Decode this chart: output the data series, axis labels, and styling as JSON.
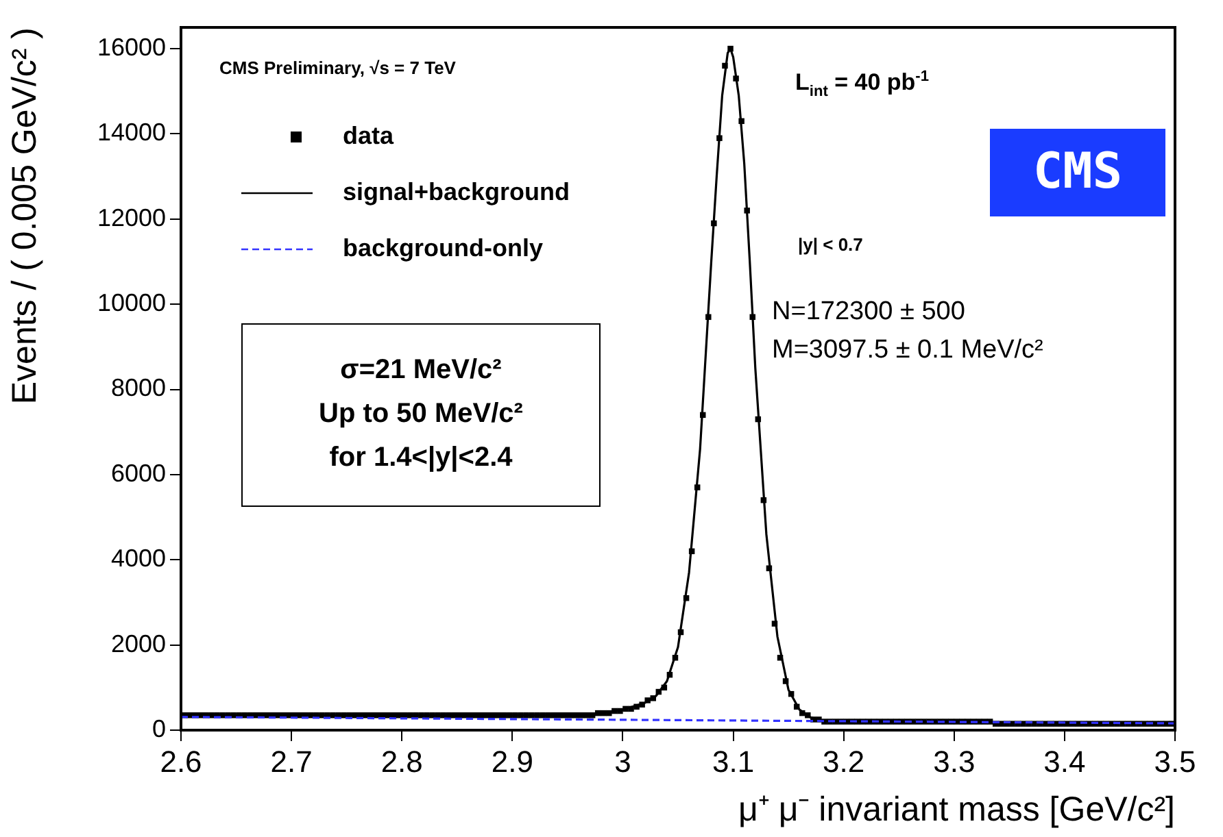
{
  "chart_data": {
    "type": "scatter",
    "xlabel": "μ⁺ μ⁻ invariant mass [GeV/c²]",
    "ylabel": "Events / ( 0.005 GeV/c² )",
    "xlim": [
      2.6,
      3.5
    ],
    "xticks": [
      2.6,
      2.7,
      2.8,
      2.9,
      3,
      3.1,
      3.2,
      3.3,
      3.4,
      3.5
    ],
    "ylim": [
      0,
      16500
    ],
    "yticks": [
      0,
      2000,
      4000,
      6000,
      8000,
      10000,
      12000,
      14000,
      16000
    ],
    "grid": false,
    "legend": "top left",
    "annotations": [
      "CMS Preliminary, √s = 7 TeV",
      "L$_{int}$ = 40 pb$^{-1}$",
      "CMS",
      "|y| < 0.7",
      "N=172300 ± 500",
      "M=3097.5 ± 0.1 MeV/c²",
      "σ=21 MeV/c²",
      "Up to 50 MeV/c²",
      "for 1.4<|y|<2.4"
    ],
    "series": [
      {
        "name": "data",
        "type": "scatter",
        "marker": "square",
        "color": "#000000",
        "x": [
          2.6025,
          2.6075,
          2.6125,
          2.6175,
          2.6225,
          2.6275,
          2.6325,
          2.6375,
          2.6425,
          2.6475,
          2.6525,
          2.6575,
          2.6625,
          2.6675,
          2.6725,
          2.6775,
          2.6825,
          2.6875,
          2.6925,
          2.6975,
          2.7025,
          2.7075,
          2.7125,
          2.7175,
          2.7225,
          2.7275,
          2.7325,
          2.7375,
          2.7425,
          2.7475,
          2.7525,
          2.7575,
          2.7625,
          2.7675,
          2.7725,
          2.7775,
          2.7825,
          2.7875,
          2.7925,
          2.7975,
          2.8025,
          2.8075,
          2.8125,
          2.8175,
          2.8225,
          2.8275,
          2.8325,
          2.8375,
          2.8425,
          2.8475,
          2.8525,
          2.8575,
          2.8625,
          2.8675,
          2.8725,
          2.8775,
          2.8825,
          2.8875,
          2.8925,
          2.8975,
          2.9025,
          2.9075,
          2.9125,
          2.9175,
          2.9225,
          2.9275,
          2.9325,
          2.9375,
          2.9425,
          2.9475,
          2.9525,
          2.9575,
          2.9625,
          2.9675,
          2.9725,
          2.9775,
          2.9825,
          2.9875,
          2.9925,
          2.9975,
          3.0025,
          3.0075,
          3.0125,
          3.0175,
          3.0225,
          3.0275,
          3.0325,
          3.0375,
          3.0425,
          3.0475,
          3.0525,
          3.0575,
          3.0625,
          3.0675,
          3.0725,
          3.0775,
          3.0825,
          3.0875,
          3.0925,
          3.0975,
          3.1025,
          3.1075,
          3.1125,
          3.1175,
          3.1225,
          3.1275,
          3.1325,
          3.1375,
          3.1425,
          3.1475,
          3.1525,
          3.1575,
          3.1625,
          3.1675,
          3.1725,
          3.1775,
          3.1825,
          3.1875,
          3.1925,
          3.1975,
          3.2025,
          3.2075,
          3.2125,
          3.2175,
          3.2225,
          3.2275,
          3.2325,
          3.2375,
          3.2425,
          3.2475,
          3.2525,
          3.2575,
          3.2625,
          3.2675,
          3.2725,
          3.2775,
          3.2825,
          3.2875,
          3.2925,
          3.2975,
          3.3025,
          3.3075,
          3.3125,
          3.3175,
          3.3225,
          3.3275,
          3.3325,
          3.3375,
          3.3425,
          3.3475,
          3.3525,
          3.3575,
          3.3625,
          3.3675,
          3.3725,
          3.3775,
          3.3825,
          3.3875,
          3.3925,
          3.3975,
          3.4025,
          3.4075,
          3.4125,
          3.4175,
          3.4225,
          3.4275,
          3.4325,
          3.4375,
          3.4425,
          3.4475,
          3.4525,
          3.4575,
          3.4625,
          3.4675,
          3.4725,
          3.4775,
          3.4825,
          3.4875,
          3.4925,
          3.4975
        ],
        "values": [
          350,
          350,
          350,
          350,
          350,
          350,
          350,
          350,
          350,
          350,
          350,
          350,
          350,
          350,
          350,
          350,
          350,
          350,
          350,
          350,
          350,
          350,
          350,
          350,
          350,
          350,
          350,
          350,
          350,
          350,
          350,
          350,
          350,
          350,
          350,
          350,
          350,
          350,
          350,
          350,
          350,
          350,
          350,
          350,
          350,
          350,
          350,
          350,
          350,
          350,
          350,
          350,
          350,
          350,
          350,
          350,
          350,
          350,
          350,
          350,
          350,
          350,
          350,
          350,
          350,
          350,
          350,
          350,
          350,
          350,
          350,
          350,
          350,
          350,
          350,
          400,
          400,
          400,
          450,
          450,
          500,
          500,
          550,
          600,
          700,
          750,
          900,
          1000,
          1300,
          1700,
          2300,
          3100,
          4200,
          5700,
          7400,
          9700,
          11900,
          13900,
          15600,
          16000,
          15300,
          14300,
          12200,
          9700,
          7300,
          5400,
          3800,
          2500,
          1700,
          1150,
          850,
          550,
          400,
          350,
          250,
          250,
          200,
          200,
          200,
          200,
          200,
          200,
          200,
          200,
          200,
          200,
          200,
          200,
          200,
          200,
          200,
          200,
          200,
          200,
          200,
          200,
          200,
          200,
          200,
          200,
          200,
          200,
          200,
          200,
          200,
          200,
          200,
          150,
          150,
          150,
          150,
          150,
          150,
          150,
          150,
          150,
          150,
          150,
          150,
          150,
          150,
          150,
          150,
          150,
          150,
          150,
          150,
          150,
          150,
          150,
          150,
          150,
          150,
          150,
          150,
          150,
          150,
          150,
          150,
          150
        ]
      },
      {
        "name": "signal+background",
        "type": "line",
        "line_style": "solid",
        "color": "#000000",
        "x": [
          2.6,
          2.7,
          2.8,
          2.9,
          2.95,
          2.98,
          3.0,
          3.02,
          3.03,
          3.04,
          3.05,
          3.06,
          3.07,
          3.08,
          3.085,
          3.09,
          3.095,
          3.0975,
          3.1,
          3.105,
          3.11,
          3.115,
          3.12,
          3.13,
          3.14,
          3.15,
          3.16,
          3.17,
          3.18,
          3.2,
          3.3,
          3.4,
          3.5
        ],
        "values": [
          350,
          350,
          350,
          350,
          350,
          400,
          480,
          640,
          800,
          1150,
          1950,
          3700,
          6600,
          10950,
          13000,
          14900,
          15900,
          16000,
          15800,
          14900,
          13300,
          11000,
          8500,
          4600,
          2200,
          950,
          480,
          300,
          230,
          190,
          180,
          170,
          160
        ]
      },
      {
        "name": "background-only",
        "type": "line",
        "line_style": "dashed",
        "color": "#3333ff",
        "x": [
          2.6,
          3.5
        ],
        "values": [
          310,
          160
        ]
      }
    ]
  }
}
